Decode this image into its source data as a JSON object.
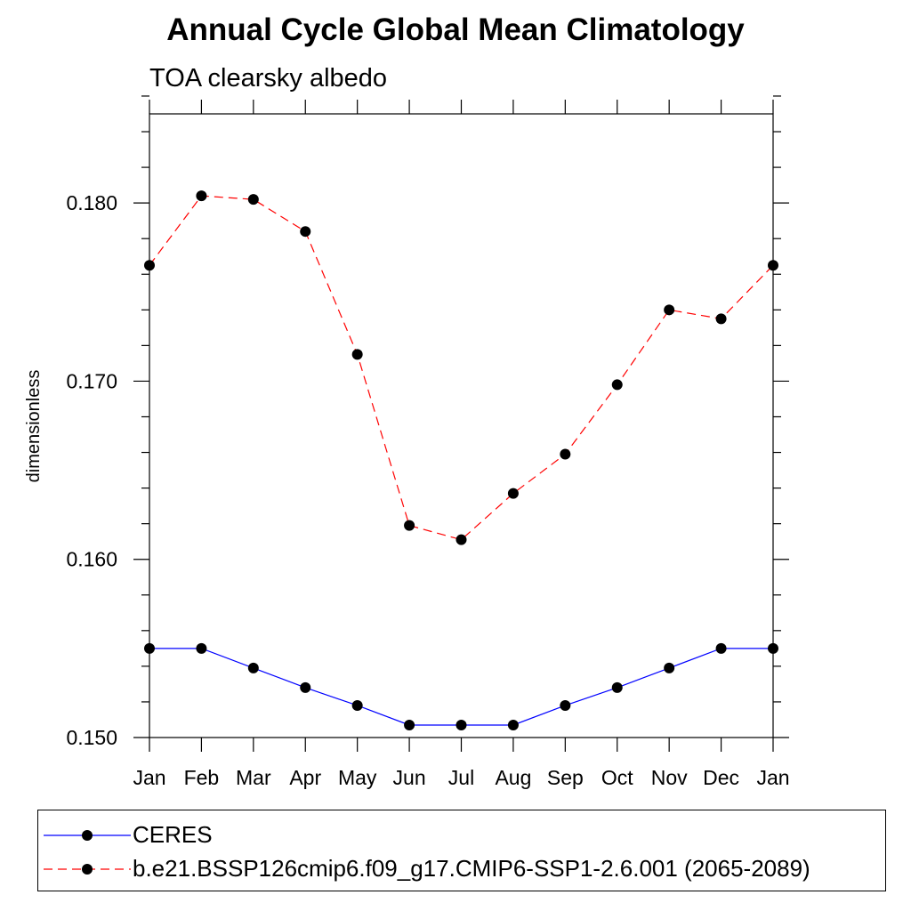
{
  "chart_data": {
    "type": "line",
    "title": "Annual Cycle Global Mean Climatology",
    "subtitle": "TOA clearsky albedo",
    "ylabel": "dimensionless",
    "xlabel": "",
    "categories": [
      "Jan",
      "Feb",
      "Mar",
      "Apr",
      "May",
      "Jun",
      "Jul",
      "Aug",
      "Sep",
      "Oct",
      "Nov",
      "Dec",
      "Jan"
    ],
    "ylim": [
      0.15,
      0.185
    ],
    "yticks": [
      "0.150",
      "0.160",
      "0.170",
      "0.180"
    ],
    "ytick_values": [
      0.15,
      0.16,
      0.17,
      0.18
    ],
    "series": [
      {
        "name": "CERES",
        "color": "#0000ff",
        "style": "solid",
        "values": [
          0.155,
          0.155,
          0.1539,
          0.1528,
          0.1518,
          0.1507,
          0.1507,
          0.1507,
          0.1518,
          0.1528,
          0.1539,
          0.155,
          0.155
        ]
      },
      {
        "name": "b.e21.BSSP126cmip6.f09_g17.CMIP6-SSP1-2.6.001 (2065-2089)",
        "color": "#ff0000",
        "style": "dashed",
        "values": [
          0.1765,
          0.1804,
          0.1802,
          0.1784,
          0.1715,
          0.1619,
          0.1611,
          0.1637,
          0.1659,
          0.1698,
          0.174,
          0.1735,
          0.1765
        ]
      }
    ],
    "legend_position": "bottom",
    "grid": false
  }
}
